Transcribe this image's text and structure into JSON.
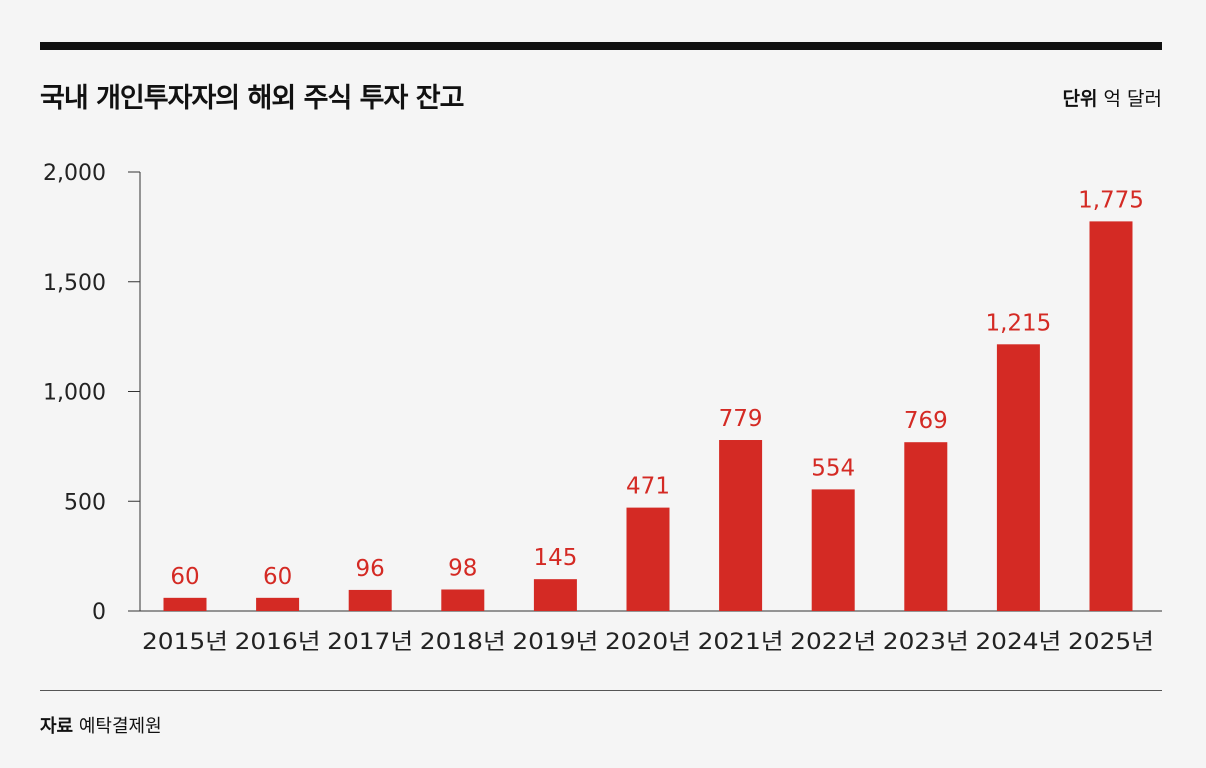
{
  "header": {
    "title": "국내 개인투자자의 해외 주식 투자 잔고",
    "unit_label": "단위",
    "unit_value": "억 달러"
  },
  "footer": {
    "source_label": "자료",
    "source_value": "예탁결제원"
  },
  "colors": {
    "bar": "#d42a24",
    "label": "#d42a24",
    "axis": "#333333"
  },
  "chart_data": {
    "type": "bar",
    "categories": [
      "2015년",
      "2016년",
      "2017년",
      "2018년",
      "2019년",
      "2020년",
      "2021년",
      "2022년",
      "2023년",
      "2024년",
      "2025년"
    ],
    "values": [
      60,
      60,
      96,
      98,
      145,
      471,
      779,
      554,
      769,
      1215,
      1775
    ],
    "value_labels": [
      "60",
      "60",
      "96",
      "98",
      "145",
      "471",
      "779",
      "554",
      "769",
      "1,215",
      "1,775"
    ],
    "yticks": [
      0,
      500,
      1000,
      1500,
      2000
    ],
    "ytick_labels": [
      "0",
      "500",
      "1,000",
      "1,500",
      "2,000"
    ],
    "ylim": [
      0,
      2000
    ],
    "title": "국내 개인투자자의 해외 주식 투자 잔고",
    "xlabel": "",
    "ylabel": "",
    "grid": false
  }
}
